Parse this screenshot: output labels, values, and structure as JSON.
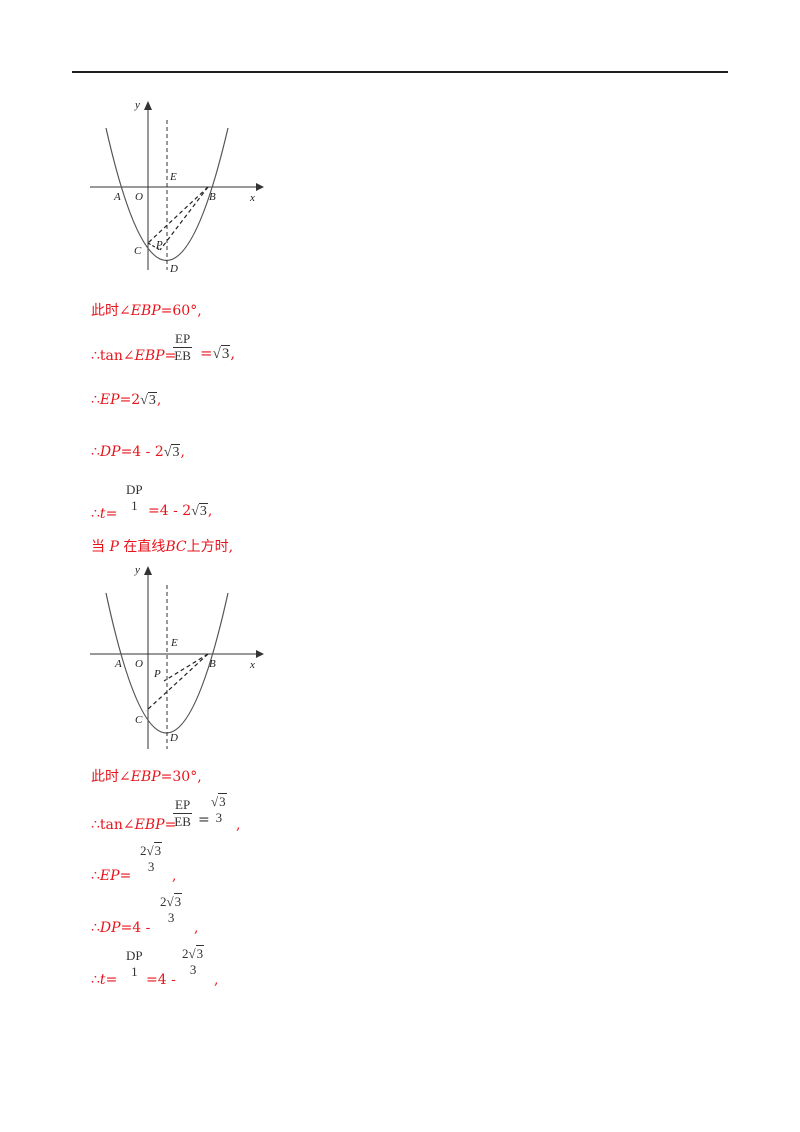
{
  "figure1": {
    "labels": {
      "y": "y",
      "x": "x",
      "A": "A",
      "O": "O",
      "E": "E",
      "B": "B",
      "C": "C",
      "P": "P",
      "D": "D"
    }
  },
  "figure2": {
    "labels": {
      "y": "y",
      "x": "x",
      "A": "A",
      "O": "O",
      "E": "E",
      "B": "B",
      "C": "C",
      "P": "P",
      "D": "D"
    }
  },
  "part1": {
    "angle_prefix": "此时∠",
    "angle_name": "EBP",
    "angle_value": "=60°,",
    "tan_prefix": "∴tan∠",
    "tan_angle": "EBP",
    "eq": "=",
    "frac_num": "EP",
    "frac_den": "EB",
    "tan_result_eq": "=",
    "sqrt_arg": "3",
    "tan_end": ",",
    "ep_prefix": "∴",
    "ep_var": "EP",
    "ep_eq": "=2",
    "ep_sqrt_arg": "3",
    "ep_end": ",",
    "dp_prefix": "∴",
    "dp_var": "DP",
    "dp_eq": "=4 - 2",
    "dp_sqrt_arg": "3",
    "dp_end": ",",
    "t_prefix": "∴",
    "t_var": "t",
    "t_eq": "=",
    "t_frac_num": "DP",
    "t_frac_den": "1",
    "t_result": "=4 - 2",
    "t_sqrt_arg": "3",
    "t_end": ","
  },
  "case2_heading": {
    "a": "当",
    "p": "P",
    "b": "在直线",
    "bc": "BC",
    "c": "上方时,"
  },
  "part2": {
    "angle_prefix": "此时∠",
    "angle_name": "EBP",
    "angle_value": "=30°,",
    "tan_prefix": "∴tan∠",
    "tan_angle": "EBP",
    "eq": "=",
    "frac_num": "EP",
    "frac_den": "EB",
    "res_num_sqrt": "3",
    "res_den": "3",
    "tan_end": ",",
    "ep_prefix": "∴",
    "ep_var": "EP",
    "ep_eq": "=",
    "ep_num_coef": "2",
    "ep_num_sqrt": "3",
    "ep_den": "3",
    "ep_end": ",",
    "dp_prefix": "∴",
    "dp_var": "DP",
    "dp_eq": "=4 -",
    "dp_num_coef": "2",
    "dp_num_sqrt": "3",
    "dp_den": "3",
    "dp_end": ",",
    "t_prefix": "∴",
    "t_var": "t",
    "t_eq": "=",
    "t_frac_num": "DP",
    "t_frac_den": "1",
    "t_result": "=4 -",
    "t_num_coef": "2",
    "t_num_sqrt": "3",
    "t_den": "3",
    "t_end": ","
  }
}
